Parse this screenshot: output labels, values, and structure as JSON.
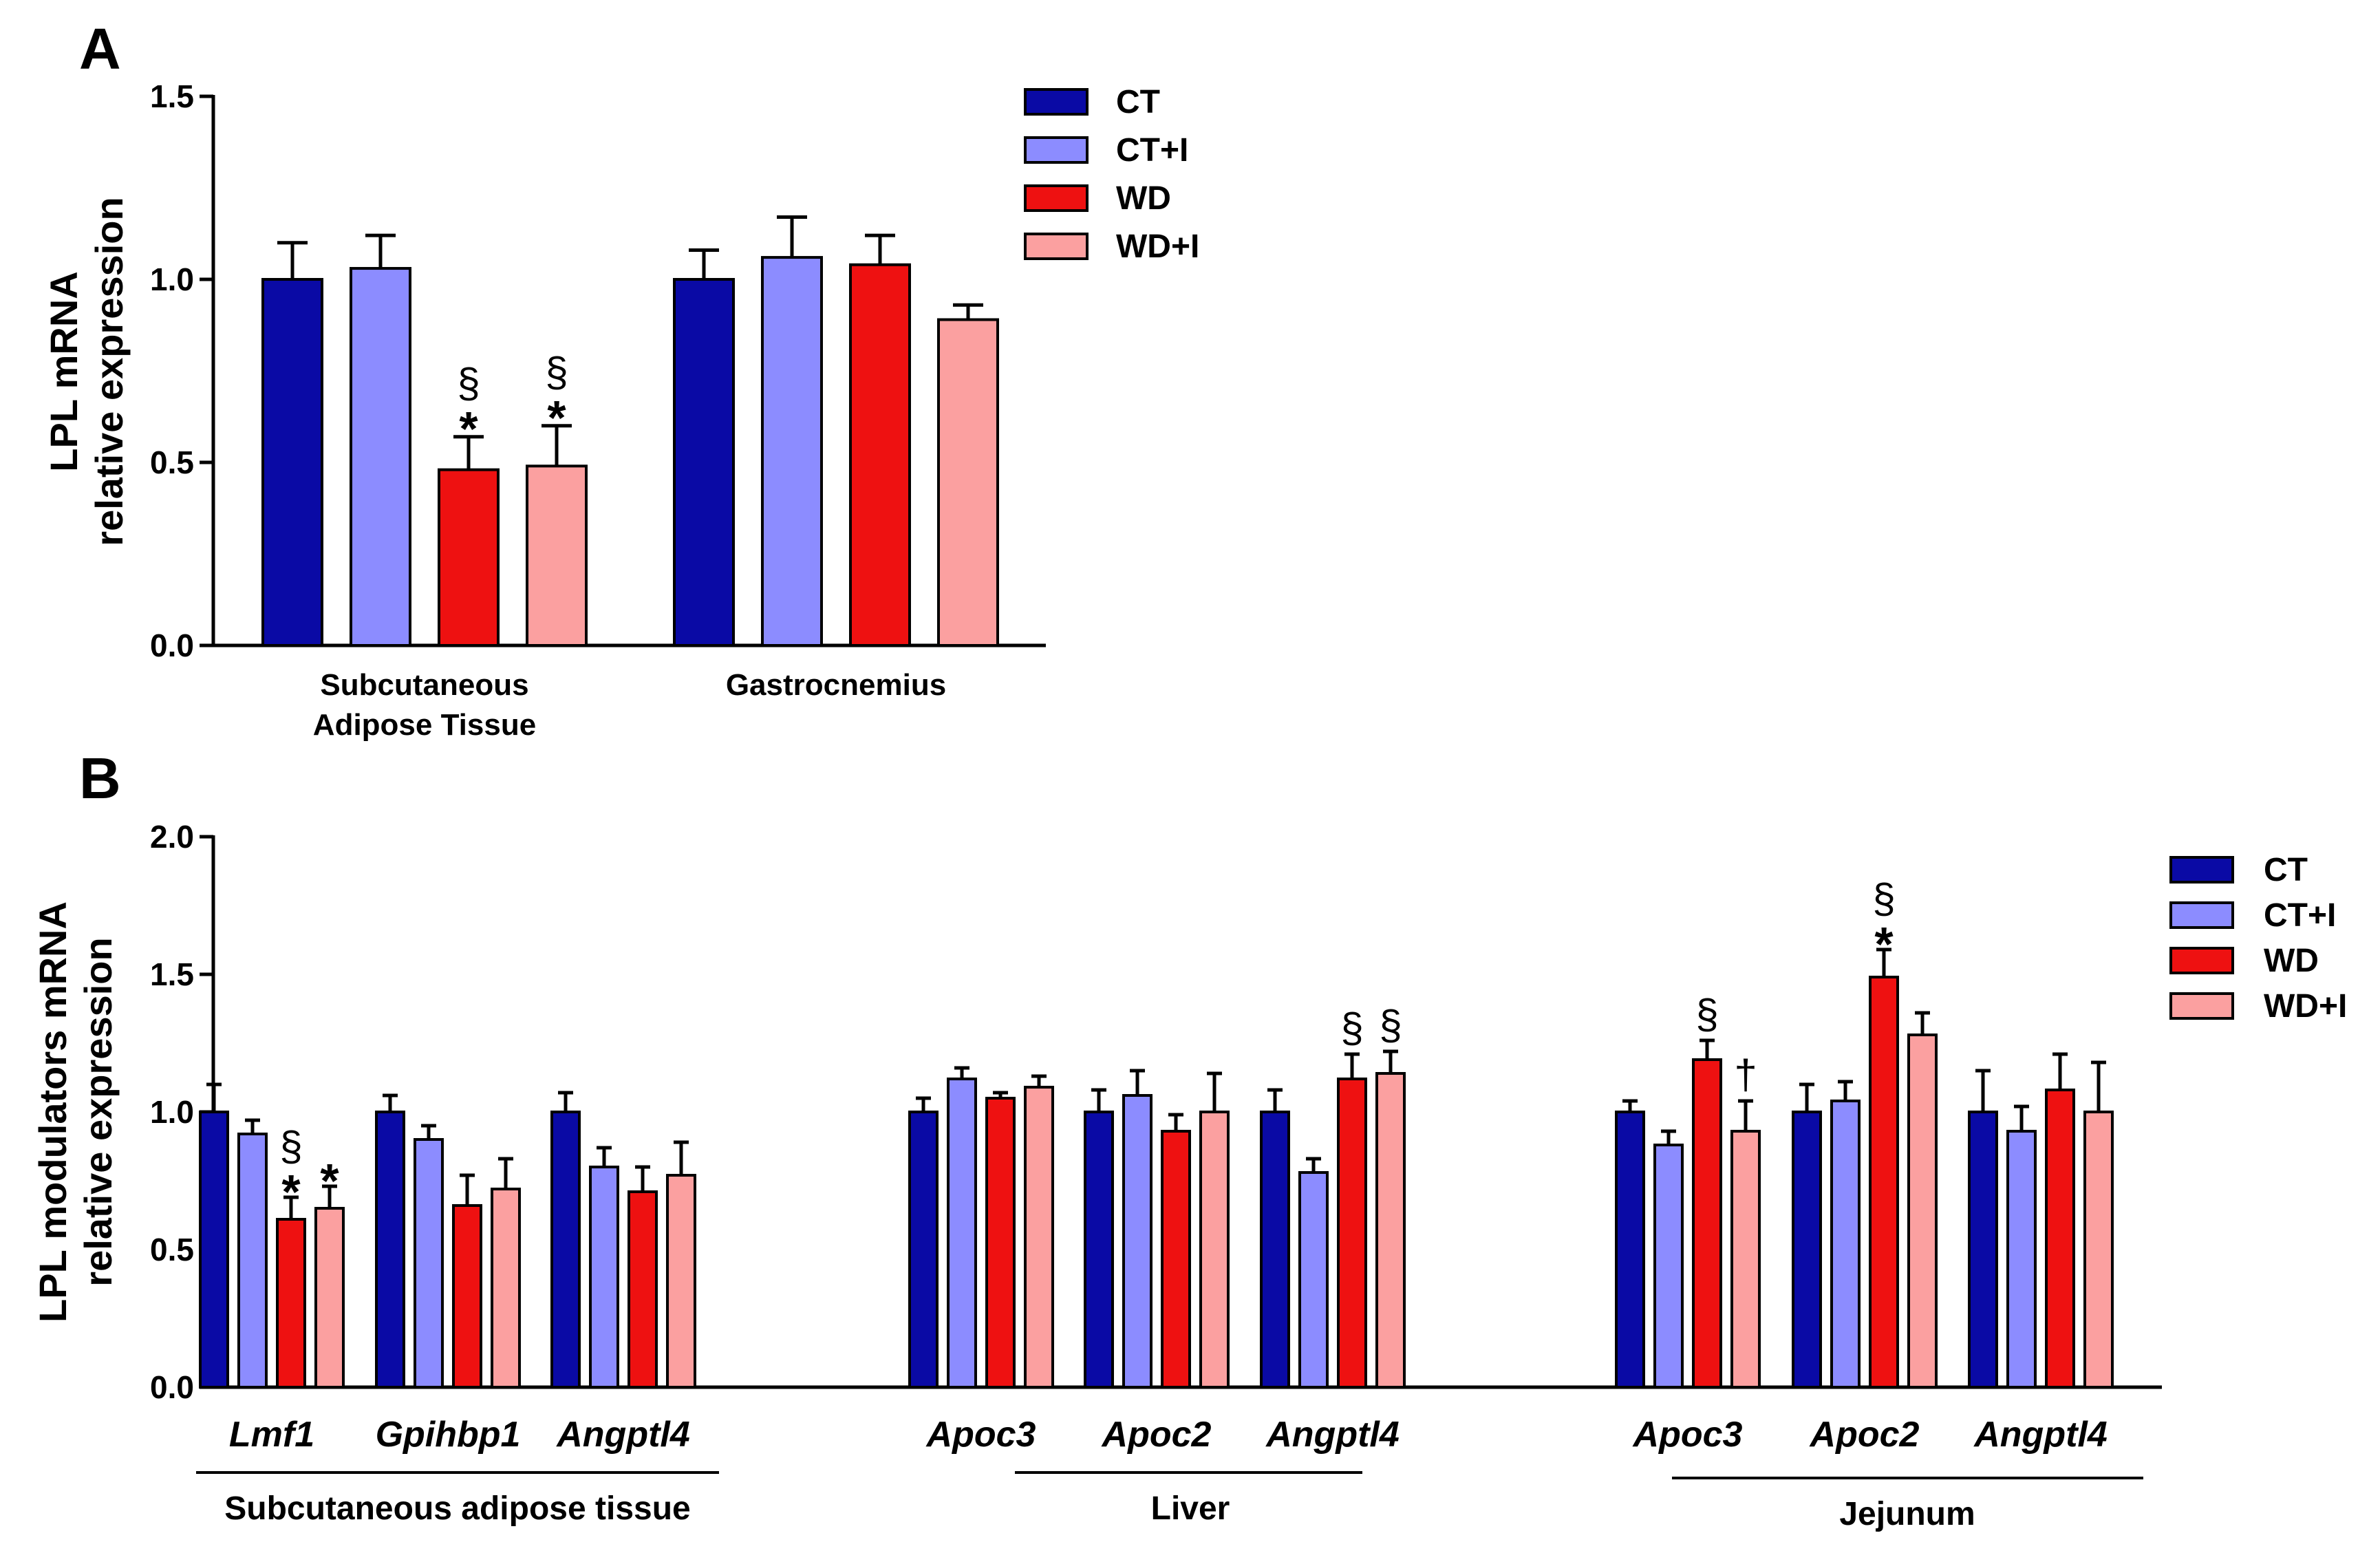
{
  "colors": {
    "CT": "#0A0AA5",
    "CT+I": "#8C8CFF",
    "WD": "#EE1111",
    "WD+I": "#FBA0A0"
  },
  "legend": [
    "CT",
    "CT+I",
    "WD",
    "WD+I"
  ],
  "chart_data": [
    {
      "panel": "A",
      "type": "bar",
      "ylabel_line1": "LPL mRNA",
      "ylabel_line2": "relative expression",
      "ylim": [
        0,
        1.5
      ],
      "yticks": [
        "0.0",
        "0.5",
        "1.0",
        "1.5"
      ],
      "categories": [
        {
          "label_lines": [
            "Subcutaneous",
            "Adipose Tissue"
          ]
        },
        {
          "label_lines": [
            "Gastrocnemius"
          ]
        }
      ],
      "series": [
        {
          "name": "CT",
          "values": [
            1.0,
            1.0
          ],
          "errors": [
            0.1,
            0.08
          ]
        },
        {
          "name": "CT+I",
          "values": [
            1.03,
            1.06
          ],
          "errors": [
            0.09,
            0.11
          ]
        },
        {
          "name": "WD",
          "values": [
            0.48,
            1.04
          ],
          "errors": [
            0.09,
            0.08
          ]
        },
        {
          "name": "WD+I",
          "values": [
            0.49,
            0.89
          ],
          "errors": [
            0.11,
            0.04
          ]
        }
      ],
      "annotations": [
        {
          "category": 0,
          "series": 2,
          "lines": [
            "§",
            "*"
          ]
        },
        {
          "category": 0,
          "series": 3,
          "lines": [
            "§",
            "*"
          ]
        }
      ]
    },
    {
      "panel": "B",
      "type": "bar",
      "ylabel_line1": "LPL modulators mRNA",
      "ylabel_line2": "relative expression",
      "ylim": [
        0,
        2.0
      ],
      "yticks": [
        "0.0",
        "0.5",
        "1.0",
        "1.5",
        "2.0"
      ],
      "categories": [
        {
          "label": "Lmf1"
        },
        {
          "label": "Gpihbp1"
        },
        {
          "label": "Angptl4"
        },
        {
          "label": "Apoc3"
        },
        {
          "label": "Apoc2"
        },
        {
          "label": "Angptl4"
        },
        {
          "label": "Apoc3"
        },
        {
          "label": "Apoc2"
        },
        {
          "label": "Angptl4"
        }
      ],
      "tissues": [
        "Subcutaneous adipose tissue",
        "Liver",
        "Jejunum"
      ],
      "series": [
        {
          "name": "CT",
          "values": [
            1.0,
            1.0,
            1.0,
            1.0,
            1.0,
            1.0,
            1.0,
            1.0,
            1.0
          ],
          "errors": [
            0.1,
            0.06,
            0.07,
            0.05,
            0.08,
            0.08,
            0.04,
            0.1,
            0.15
          ]
        },
        {
          "name": "CT+I",
          "values": [
            0.92,
            0.9,
            0.8,
            1.12,
            1.06,
            0.78,
            0.88,
            1.04,
            0.93
          ],
          "errors": [
            0.05,
            0.05,
            0.07,
            0.04,
            0.09,
            0.05,
            0.05,
            0.07,
            0.09
          ]
        },
        {
          "name": "WD",
          "values": [
            0.61,
            0.66,
            0.71,
            1.05,
            0.93,
            1.12,
            1.19,
            1.49,
            1.08
          ],
          "errors": [
            0.08,
            0.11,
            0.09,
            0.02,
            0.06,
            0.09,
            0.07,
            0.1,
            0.13
          ]
        },
        {
          "name": "WD+I",
          "values": [
            0.65,
            0.72,
            0.77,
            1.09,
            1.0,
            1.14,
            0.93,
            1.28,
            1.0
          ],
          "errors": [
            0.08,
            0.11,
            0.12,
            0.04,
            0.14,
            0.08,
            0.11,
            0.08,
            0.18
          ]
        }
      ],
      "annotations": [
        {
          "category": 0,
          "series": 2,
          "lines": [
            "§",
            "*"
          ]
        },
        {
          "category": 0,
          "series": 3,
          "lines": [
            "*"
          ]
        },
        {
          "category": 5,
          "series": 2,
          "lines": [
            "§"
          ]
        },
        {
          "category": 5,
          "series": 3,
          "lines": [
            "§"
          ]
        },
        {
          "category": 6,
          "series": 2,
          "lines": [
            "§"
          ]
        },
        {
          "category": 6,
          "series": 3,
          "lines": [
            "†"
          ]
        },
        {
          "category": 7,
          "series": 2,
          "lines": [
            "§",
            "*"
          ]
        }
      ]
    }
  ]
}
